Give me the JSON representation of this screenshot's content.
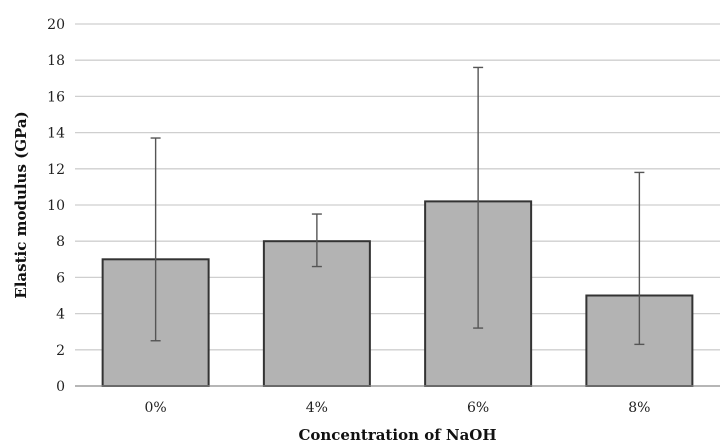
{
  "chart_data": {
    "type": "bar",
    "title": "",
    "xlabel": "Concentration of NaOH",
    "ylabel": "Elastic modulus (GPa)",
    "categories": [
      "0%",
      "4%",
      "6%",
      "8%"
    ],
    "values": [
      7.0,
      8.0,
      10.2,
      5.0
    ],
    "error_bars": [
      {
        "low": 2.5,
        "high": 13.7
      },
      {
        "low": 6.6,
        "high": 9.5
      },
      {
        "low": 3.2,
        "high": 17.6
      },
      {
        "low": 2.3,
        "high": 11.8
      }
    ],
    "ylim": [
      0,
      20
    ],
    "yticks": [
      0,
      2,
      4,
      6,
      8,
      10,
      12,
      14,
      16,
      18,
      20
    ],
    "grid": true,
    "legend": "none",
    "colors": {
      "bar_fill": "#b3b3b3",
      "bar_stroke": "#333333",
      "grid": "#cfcfcf",
      "error_bar": "#555555"
    }
  }
}
